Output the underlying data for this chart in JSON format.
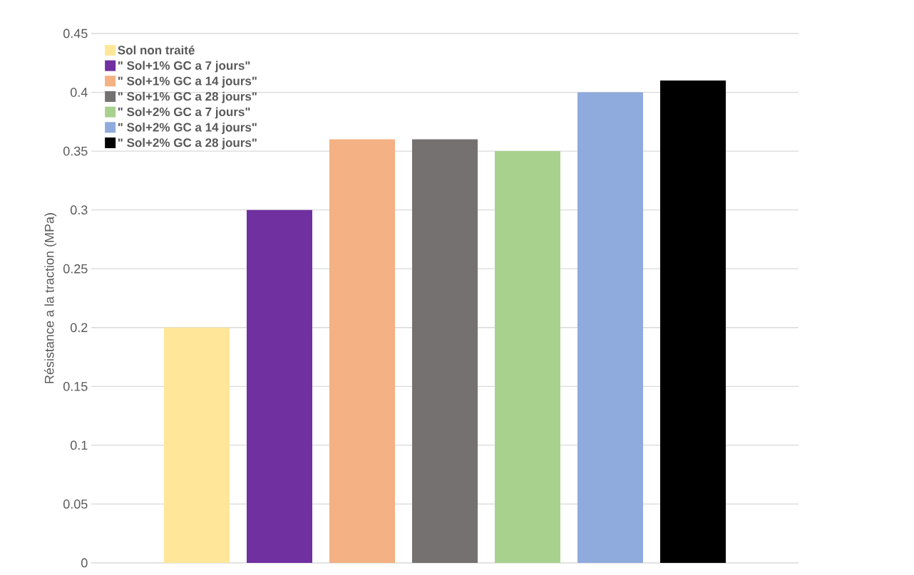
{
  "chart_data": {
    "type": "bar",
    "ylabel": "Résistance a la traction (MPa)",
    "categories": [
      null
    ],
    "series": [
      {
        "name": "Sol non traité",
        "color": "#ffe699",
        "values": [
          0.2
        ]
      },
      {
        "name": "\" Sol+1% GC a 7 jours\"",
        "color": "#7030a0",
        "values": [
          0.3
        ]
      },
      {
        "name": "\" Sol+1% GC a 14 jours\"",
        "color": "#f4b183",
        "values": [
          0.36
        ]
      },
      {
        "name": "\" Sol+1% GC a 28 jours\"",
        "color": "#767171",
        "values": [
          0.36
        ]
      },
      {
        "name": "\" Sol+2% GC a 7 jours\"",
        "color": "#a9d18e",
        "values": [
          0.35
        ]
      },
      {
        "name": "\" Sol+2% GC a 14 jours\"",
        "color": "#8faadc",
        "values": [
          0.4
        ]
      },
      {
        "name": "\" Sol+2% GC a 28 jours\"",
        "color": "#000000",
        "values": [
          0.41
        ]
      }
    ],
    "ylim": [
      0,
      0.45
    ],
    "yticks": [
      0,
      0.05,
      0.1,
      0.15,
      0.2,
      0.25,
      0.3,
      0.35,
      0.4,
      0.45
    ],
    "grid": "y",
    "legend": "top left",
    "tick_labels": "y"
  }
}
